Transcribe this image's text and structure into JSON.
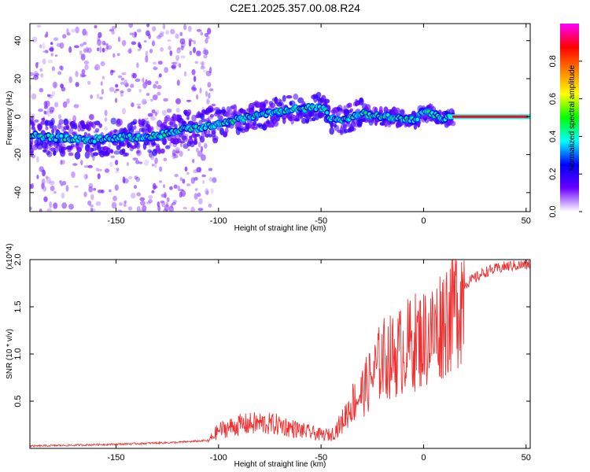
{
  "title": "C2E1.2025.357.00.08.R24",
  "colors": {
    "snr_line": "#f03030",
    "colormap": [
      "#ffffff",
      "#6a00ff",
      "#0000ff",
      "#00ffff",
      "#00ff00",
      "#ffff00",
      "#ff8000",
      "#ff0000",
      "#ff00ff"
    ]
  },
  "chart_data": [
    {
      "type": "heatmap",
      "xlabel": "Height of straight line (km)",
      "ylabel": "Frequency (Hz)",
      "xlim": [
        -192,
        52
      ],
      "ylim": [
        -50,
        49
      ],
      "xticks": [
        -150,
        -100,
        -50,
        0,
        50
      ],
      "yticks": [
        -40,
        -20,
        0,
        20,
        40
      ],
      "ridge": {
        "x": [
          -190,
          -180,
          -170,
          -160,
          -150,
          -140,
          -130,
          -120,
          -110,
          -100,
          -90,
          -80,
          -70,
          -60,
          -50,
          -45,
          -40,
          -30,
          -20,
          -10,
          -5,
          0,
          5,
          10,
          15,
          20,
          30,
          40,
          50
        ],
        "y": [
          -10,
          -11,
          -12,
          -12,
          -11,
          -11,
          -10,
          -7,
          -6,
          -4,
          -1,
          1,
          3,
          4,
          5,
          -1,
          -2,
          2,
          0,
          -1,
          -2,
          2,
          1,
          -1,
          0,
          0,
          0,
          0,
          0
        ]
      },
      "colorbar": {
        "label": "Normalized spectral amplitude",
        "range": [
          0,
          1
        ],
        "ticks": [
          0.0,
          0.2,
          0.4,
          0.6,
          0.8
        ]
      }
    },
    {
      "type": "line",
      "xlabel": "Height of straight line (km)",
      "ylabel": "SNR (10 * v/v)",
      "multiplier": "(x10^4)",
      "xlim": [
        -192,
        52
      ],
      "ylim": [
        0,
        2.0
      ],
      "xticks": [
        -150,
        -100,
        -50,
        0,
        50
      ],
      "yticks": [
        0.5,
        1.0,
        1.5,
        2.0
      ],
      "envelope": {
        "x": [
          -192,
          -150,
          -120,
          -105,
          -100,
          -90,
          -80,
          -70,
          -60,
          -50,
          -45,
          -40,
          -35,
          -30,
          -25,
          -20,
          -15,
          -10,
          -5,
          0,
          5,
          10,
          20,
          30,
          40,
          52
        ],
        "y": [
          0.02,
          0.04,
          0.06,
          0.08,
          0.2,
          0.26,
          0.28,
          0.26,
          0.2,
          0.15,
          0.15,
          0.28,
          0.5,
          0.62,
          0.8,
          1.0,
          1.02,
          1.1,
          1.18,
          1.22,
          1.28,
          1.45,
          1.75,
          1.88,
          1.94,
          1.96
        ]
      }
    }
  ]
}
